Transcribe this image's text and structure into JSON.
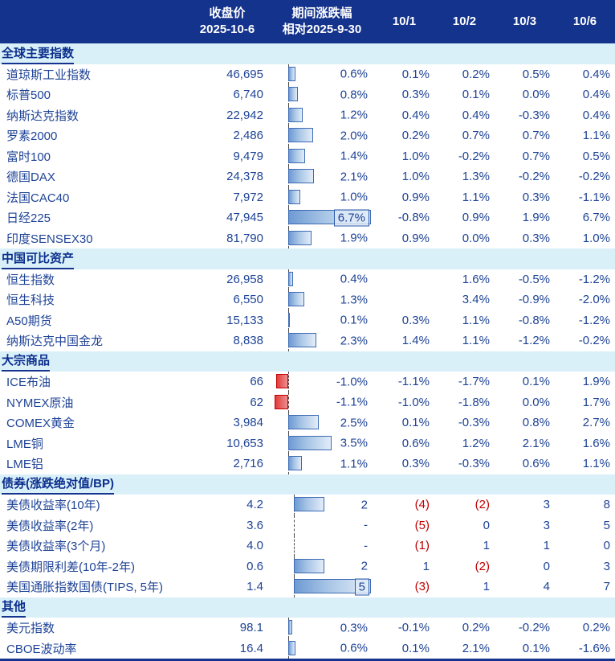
{
  "header": {
    "close_col_line1": "收盘价",
    "close_col_line2": "2025-10-6",
    "change_col_line1": "期间涨跌幅",
    "change_col_line2": "相对2025-9-30",
    "day_cols": [
      "10/1",
      "10/2",
      "10/3",
      "10/6"
    ]
  },
  "colors": {
    "header_bg": "#14338c",
    "header_text": "#ffffff",
    "section_bg": "#d9f0f9",
    "section_text": "#0c2f8d",
    "data_text": "#1e4396",
    "negative_red": "#c00000",
    "bar_positive": "#6e9ad3",
    "bar_negative": "#e03d3d"
  },
  "sections": [
    {
      "title": "全球主要指数",
      "unit": "pct",
      "rows": [
        {
          "name": "道琼斯工业指数",
          "close": "46,695",
          "change": 0.6,
          "change_label": "0.6%",
          "boxed": false,
          "days": [
            "0.1%",
            "0.2%",
            "0.5%",
            "0.4%"
          ]
        },
        {
          "name": "标普500",
          "close": "6,740",
          "change": 0.8,
          "change_label": "0.8%",
          "boxed": false,
          "days": [
            "0.3%",
            "0.1%",
            "0.0%",
            "0.4%"
          ]
        },
        {
          "name": "纳斯达克指数",
          "close": "22,942",
          "change": 1.2,
          "change_label": "1.2%",
          "boxed": false,
          "days": [
            "0.4%",
            "0.4%",
            "-0.3%",
            "0.4%"
          ]
        },
        {
          "name": "罗素2000",
          "close": "2,486",
          "change": 2.0,
          "change_label": "2.0%",
          "boxed": false,
          "days": [
            "0.2%",
            "0.7%",
            "0.7%",
            "1.1%"
          ]
        },
        {
          "name": "富时100",
          "close": "9,479",
          "change": 1.4,
          "change_label": "1.4%",
          "boxed": false,
          "days": [
            "1.0%",
            "-0.2%",
            "0.7%",
            "0.5%"
          ]
        },
        {
          "name": "德国DAX",
          "close": "24,378",
          "change": 2.1,
          "change_label": "2.1%",
          "boxed": false,
          "days": [
            "1.0%",
            "1.3%",
            "-0.2%",
            "-0.2%"
          ]
        },
        {
          "name": "法国CAC40",
          "close": "7,972",
          "change": 1.0,
          "change_label": "1.0%",
          "boxed": false,
          "days": [
            "0.9%",
            "1.1%",
            "0.3%",
            "-1.1%"
          ]
        },
        {
          "name": "日经225",
          "close": "47,945",
          "change": 6.7,
          "change_label": "6.7%",
          "boxed": true,
          "days": [
            "-0.8%",
            "0.9%",
            "1.9%",
            "6.7%"
          ]
        },
        {
          "name": "印度SENSEX30",
          "close": "81,790",
          "change": 1.9,
          "change_label": "1.9%",
          "boxed": false,
          "days": [
            "0.9%",
            "0.0%",
            "0.3%",
            "1.0%"
          ]
        }
      ]
    },
    {
      "title": "中国可比资产",
      "unit": "pct",
      "rows": [
        {
          "name": "恒生指数",
          "close": "26,958",
          "change": 0.4,
          "change_label": "0.4%",
          "boxed": false,
          "days": [
            "",
            "1.6%",
            "-0.5%",
            "-1.2%"
          ]
        },
        {
          "name": "恒生科技",
          "close": "6,550",
          "change": 1.3,
          "change_label": "1.3%",
          "boxed": false,
          "days": [
            "",
            "3.4%",
            "-0.9%",
            "-2.0%"
          ]
        },
        {
          "name": "A50期货",
          "close": "15,133",
          "change": 0.1,
          "change_label": "0.1%",
          "boxed": false,
          "days": [
            "0.3%",
            "1.1%",
            "-0.8%",
            "-1.2%"
          ]
        },
        {
          "name": "纳斯达克中国金龙",
          "close": "8,838",
          "change": 2.3,
          "change_label": "2.3%",
          "boxed": false,
          "days": [
            "1.4%",
            "1.1%",
            "-1.2%",
            "-0.2%"
          ]
        }
      ]
    },
    {
      "title": "大宗商品",
      "unit": "pct",
      "rows": [
        {
          "name": "ICE布油",
          "close": "66",
          "change": -1.0,
          "change_label": "-1.0%",
          "boxed": false,
          "days": [
            "-1.1%",
            "-1.7%",
            "0.1%",
            "1.9%"
          ]
        },
        {
          "name": "NYMEX原油",
          "close": "62",
          "change": -1.1,
          "change_label": "-1.1%",
          "boxed": false,
          "days": [
            "-1.0%",
            "-1.8%",
            "0.0%",
            "1.7%"
          ]
        },
        {
          "name": "COMEX黄金",
          "close": "3,984",
          "change": 2.5,
          "change_label": "2.5%",
          "boxed": false,
          "days": [
            "0.1%",
            "-0.3%",
            "0.8%",
            "2.7%"
          ]
        },
        {
          "name": "LME铜",
          "close": "10,653",
          "change": 3.5,
          "change_label": "3.5%",
          "boxed": false,
          "days": [
            "0.6%",
            "1.2%",
            "2.1%",
            "1.6%"
          ]
        },
        {
          "name": "LME铝",
          "close": "2,716",
          "change": 1.1,
          "change_label": "1.1%",
          "boxed": false,
          "days": [
            "0.3%",
            "-0.3%",
            "0.6%",
            "1.1%"
          ]
        }
      ]
    },
    {
      "title": "债券(涨跌绝对值/BP)",
      "unit": "bp",
      "rows": [
        {
          "name": "美债收益率(10年)",
          "close": "4.2",
          "change": 2,
          "change_label": "2",
          "boxed": false,
          "days": [
            "(4)",
            "(2)",
            "3",
            "8"
          ]
        },
        {
          "name": "美债收益率(2年)",
          "close": "3.6",
          "change": null,
          "change_label": "-",
          "boxed": false,
          "days": [
            "(5)",
            "0",
            "3",
            "5"
          ]
        },
        {
          "name": "美债收益率(3个月)",
          "close": "4.0",
          "change": null,
          "change_label": "-",
          "boxed": false,
          "days": [
            "(1)",
            "1",
            "1",
            "0"
          ]
        },
        {
          "name": "美债期限利差(10年-2年)",
          "close": "0.6",
          "change": 2,
          "change_label": "2",
          "boxed": false,
          "days": [
            "1",
            "(2)",
            "0",
            "3"
          ]
        },
        {
          "name": "美国通胀指数国债(TIPS, 5年)",
          "close": "1.4",
          "change": 5,
          "change_label": "5",
          "boxed": true,
          "days": [
            "(3)",
            "1",
            "4",
            "7"
          ]
        }
      ]
    },
    {
      "title": "其他",
      "unit": "pct",
      "rows": [
        {
          "name": "美元指数",
          "close": "98.1",
          "change": 0.3,
          "change_label": "0.3%",
          "boxed": false,
          "days": [
            "-0.1%",
            "0.2%",
            "-0.2%",
            "0.2%"
          ]
        },
        {
          "name": "CBOE波动率",
          "close": "16.4",
          "change": 0.6,
          "change_label": "0.6%",
          "boxed": false,
          "days": [
            "0.1%",
            "2.1%",
            "0.1%",
            "-1.6%"
          ]
        }
      ]
    }
  ]
}
